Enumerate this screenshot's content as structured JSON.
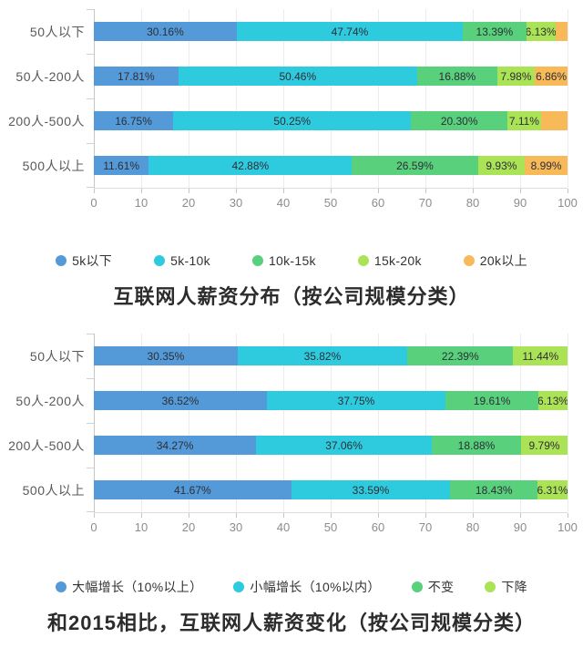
{
  "page": {
    "background": "#ffffff"
  },
  "chart_data": [
    {
      "type": "bar",
      "stacked": true,
      "orientation": "horizontal",
      "title": "互联网人薪资分布（按公司规模分类）",
      "categories": [
        "50人以下",
        "50人-200人",
        "200人-500人",
        "500人以上"
      ],
      "xlim": [
        0,
        100
      ],
      "xticks": [
        0,
        10,
        20,
        30,
        40,
        50,
        60,
        70,
        80,
        90,
        100
      ],
      "grid": true,
      "legend_position": "bottom",
      "series": [
        {
          "name": "5k以下",
          "color": "#549ad8",
          "values": [
            30.16,
            17.81,
            16.75,
            11.61
          ],
          "labels": [
            "30.16%",
            "17.81%",
            "16.75%",
            "11.61%"
          ]
        },
        {
          "name": "5k-10k",
          "color": "#2ecbdf",
          "values": [
            47.74,
            50.46,
            50.25,
            42.88
          ],
          "labels": [
            "47.74%",
            "50.46%",
            "50.25%",
            "42.88%"
          ]
        },
        {
          "name": "10k-15k",
          "color": "#58d07c",
          "values": [
            13.39,
            16.88,
            20.3,
            26.59
          ],
          "labels": [
            "13.39%",
            "16.88%",
            "20.30%",
            "26.59%"
          ]
        },
        {
          "name": "15k-20k",
          "color": "#abe356",
          "values": [
            6.13,
            7.98,
            7.11,
            9.93
          ],
          "labels": [
            "6.13%",
            "7.98%",
            "7.11%",
            "9.93%"
          ]
        },
        {
          "name": "20k以上",
          "color": "#f8ba59",
          "values": [
            2.58,
            6.86,
            5.59,
            8.99
          ],
          "labels": [
            "",
            "6.86%",
            "",
            "8.99%"
          ]
        }
      ]
    },
    {
      "type": "bar",
      "stacked": true,
      "orientation": "horizontal",
      "title": "和2015相比，互联网人薪资变化（按公司规模分类）",
      "categories": [
        "50人以下",
        "50人-200人",
        "200人-500人",
        "500人以上"
      ],
      "xlim": [
        0,
        100
      ],
      "xticks": [
        0,
        10,
        20,
        30,
        40,
        50,
        60,
        70,
        80,
        90,
        100
      ],
      "grid": true,
      "legend_position": "bottom",
      "series": [
        {
          "name": "大幅增长（10%以上）",
          "color": "#549ad8",
          "values": [
            30.35,
            36.52,
            34.27,
            41.67
          ],
          "labels": [
            "30.35%",
            "36.52%",
            "34.27%",
            "41.67%"
          ]
        },
        {
          "name": "小幅增长（10%以内）",
          "color": "#2ecbdf",
          "values": [
            35.82,
            37.75,
            37.06,
            33.59
          ],
          "labels": [
            "35.82%",
            "37.75%",
            "37.06%",
            "33.59%"
          ]
        },
        {
          "name": "不变",
          "color": "#58d07c",
          "values": [
            22.39,
            19.61,
            18.88,
            18.43
          ],
          "labels": [
            "22.39%",
            "19.61%",
            "18.88%",
            "18.43%"
          ]
        },
        {
          "name": "下降",
          "color": "#abe356",
          "values": [
            11.44,
            6.13,
            9.79,
            6.31
          ],
          "labels": [
            "11.44%",
            "6.13%",
            "9.79%",
            "6.31%"
          ]
        }
      ]
    }
  ]
}
